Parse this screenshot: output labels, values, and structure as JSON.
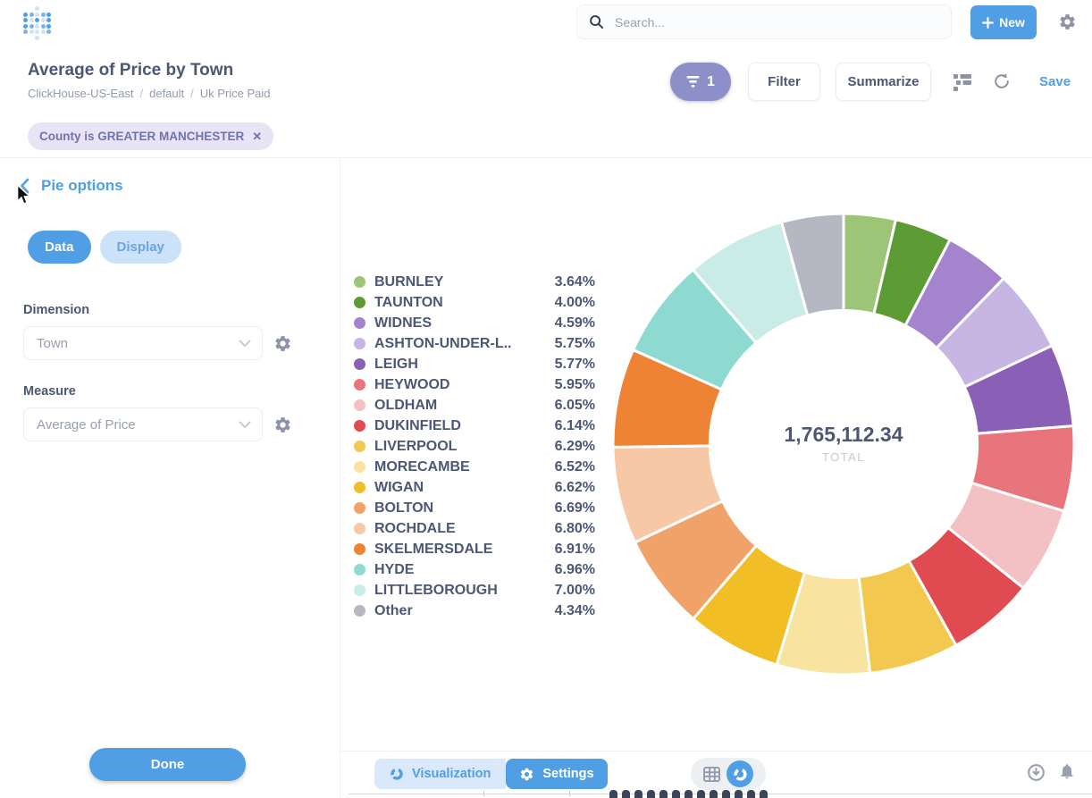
{
  "header": {
    "search": {
      "placeholder": "Search..."
    },
    "new_button_label": "New"
  },
  "question_bar": {
    "title": "Average of Price by Town",
    "breadcrumb": [
      "ClickHouse-US-East",
      "default",
      "Uk Price Paid"
    ],
    "filter_badge_count": "1",
    "filter_label": "Filter",
    "summarize_label": "Summarize",
    "save_label": "Save"
  },
  "filter_chips": [
    {
      "label": "County is GREATER MANCHESTER"
    }
  ],
  "sidebar": {
    "title": "Pie options",
    "tabs": [
      {
        "label": "Data",
        "active": true
      },
      {
        "label": "Display",
        "active": false
      }
    ],
    "fields": [
      {
        "label": "Dimension",
        "value": "Town"
      },
      {
        "label": "Measure",
        "value": "Average of Price"
      }
    ],
    "done_label": "Done"
  },
  "chart_data": {
    "type": "pie",
    "total_value": "1,765,112.34",
    "total_label": "TOTAL",
    "start_angle_deg": -90,
    "direction": "clockwise",
    "inner_radius_ratio": 0.58,
    "legend_position": "left",
    "slices": [
      {
        "label": "BURNLEY",
        "value": 3.64,
        "display": "3.64%",
        "color": "#9CC577"
      },
      {
        "label": "TAUNTON",
        "value": 4.0,
        "display": "4.00%",
        "color": "#5D9B35"
      },
      {
        "label": "WIDNES",
        "value": 4.59,
        "display": "4.59%",
        "color": "#A584CE"
      },
      {
        "label": "ASHTON-UNDER-L..",
        "value": 5.75,
        "display": "5.75%",
        "color": "#C7B5E4"
      },
      {
        "label": "LEIGH",
        "value": 5.77,
        "display": "5.77%",
        "color": "#8A60B7"
      },
      {
        "label": "HEYWOOD",
        "value": 5.95,
        "display": "5.95%",
        "color": "#E8747C"
      },
      {
        "label": "OLDHAM",
        "value": 6.05,
        "display": "6.05%",
        "color": "#F3C0C4"
      },
      {
        "label": "DUKINFIELD",
        "value": 6.14,
        "display": "6.14%",
        "color": "#E04B52"
      },
      {
        "label": "LIVERPOOL",
        "value": 6.29,
        "display": "6.29%",
        "color": "#F2C94E"
      },
      {
        "label": "MORECAMBE",
        "value": 6.52,
        "display": "6.52%",
        "color": "#F8E3A0"
      },
      {
        "label": "WIGAN",
        "value": 6.62,
        "display": "6.62%",
        "color": "#F2BE25"
      },
      {
        "label": "BOLTON",
        "value": 6.69,
        "display": "6.69%",
        "color": "#F0A268"
      },
      {
        "label": "ROCHDALE",
        "value": 6.8,
        "display": "6.80%",
        "color": "#F6C8A6"
      },
      {
        "label": "SKELMERSDALE",
        "value": 6.91,
        "display": "6.91%",
        "color": "#EE8335"
      },
      {
        "label": "HYDE",
        "value": 6.96,
        "display": "6.96%",
        "color": "#8EDAD0"
      },
      {
        "label": "LITTLEBOROUGH",
        "value": 7.0,
        "display": "7.00%",
        "color": "#C9ECE7"
      },
      {
        "label": "Other",
        "value": 4.34,
        "display": "4.34%",
        "color": "#B5B8C2"
      }
    ]
  },
  "footer": {
    "visualization_label": "Visualization",
    "settings_label": "Settings"
  },
  "colors": {
    "accent": "#509EE3",
    "text_dark": "#4C5773",
    "text_gray": "#949AAB",
    "filter_purple": "#7173AD",
    "filter_badge_bg": "#8D90C8"
  }
}
